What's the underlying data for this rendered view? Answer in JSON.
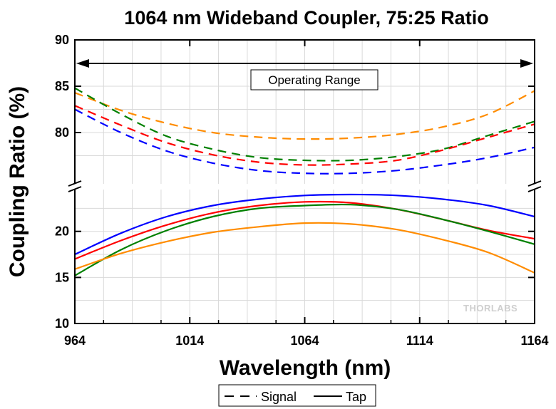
{
  "chart_data": {
    "type": "line",
    "title": "1064 nm Wideband Coupler, 75:25 Ratio",
    "xlabel": "Wavelength (nm)",
    "ylabel": "Coupling Ratio (%)",
    "xlim": [
      964,
      1164
    ],
    "x_ticks": [
      "964",
      "1014",
      "1064",
      "1114",
      "1164"
    ],
    "y_break": true,
    "ylim_upper": [
      75,
      90
    ],
    "ylim_lower": [
      10,
      24
    ],
    "y_ticks_upper": [
      "80",
      "85",
      "90"
    ],
    "y_ticks_lower": [
      "10",
      "15",
      "20"
    ],
    "grid": true,
    "annotation": "Operating Range",
    "watermark": "THORLABS",
    "legend": {
      "placement": "bottom-center",
      "entries": [
        {
          "label": "Signal",
          "style": "dashed"
        },
        {
          "label": "Tap",
          "style": "solid"
        }
      ]
    },
    "x": [
      964,
      984,
      1004,
      1024,
      1044,
      1064,
      1084,
      1104,
      1124,
      1144,
      1164
    ],
    "series": [
      {
        "color": "#ff8c00",
        "style": "dashed",
        "values": [
          84.3,
          82.4,
          81.0,
          80.0,
          79.5,
          79.3,
          79.4,
          79.8,
          80.6,
          82.0,
          84.5
        ]
      },
      {
        "color": "#008000",
        "style": "dashed",
        "values": [
          84.8,
          82.0,
          79.6,
          78.2,
          77.3,
          77.0,
          77.0,
          77.4,
          78.2,
          79.7,
          81.2
        ]
      },
      {
        "color": "#ff0000",
        "style": "dashed",
        "values": [
          82.9,
          80.8,
          78.9,
          77.6,
          76.8,
          76.5,
          76.6,
          77.0,
          78.1,
          79.5,
          80.9
        ]
      },
      {
        "color": "#0000ff",
        "style": "dashed",
        "values": [
          82.5,
          80.0,
          78.0,
          76.7,
          75.9,
          75.6,
          75.6,
          75.9,
          76.5,
          77.3,
          78.4
        ]
      },
      {
        "color": "#0000ff",
        "style": "solid",
        "values": [
          17.5,
          19.8,
          21.6,
          22.8,
          23.5,
          23.9,
          24.0,
          23.9,
          23.5,
          22.8,
          21.6
        ]
      },
      {
        "color": "#ff0000",
        "style": "solid",
        "values": [
          17.0,
          19.0,
          20.7,
          22.0,
          22.8,
          23.2,
          23.1,
          22.4,
          21.3,
          20.1,
          19.2
        ]
      },
      {
        "color": "#008000",
        "style": "solid",
        "values": [
          15.2,
          18.0,
          20.1,
          21.6,
          22.5,
          22.8,
          22.9,
          22.4,
          21.3,
          20.0,
          18.6
        ]
      },
      {
        "color": "#ff8c00",
        "style": "solid",
        "values": [
          15.9,
          17.6,
          18.9,
          19.9,
          20.5,
          20.9,
          20.8,
          20.2,
          19.1,
          17.7,
          15.5
        ]
      }
    ]
  }
}
